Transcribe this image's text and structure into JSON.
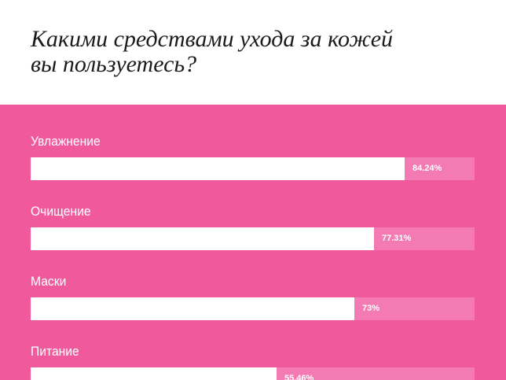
{
  "header": {
    "title": "Какими средствами ухода за кожей\nвы пользуетесь?"
  },
  "colors": {
    "panel": "#f05a9d",
    "track": "#f47ab3",
    "bar": "#ffffff"
  },
  "chart_data": {
    "type": "bar",
    "orientation": "horizontal",
    "title": "Какими средствами ухода за кожей вы пользуетесь?",
    "categories": [
      "Увлажнение",
      "Очищение",
      "Маски",
      "Питание"
    ],
    "values": [
      84.24,
      77.31,
      73,
      55.46
    ],
    "value_labels": [
      "84.24%",
      "77.31%",
      "73%",
      "55.46%"
    ],
    "xlim": [
      0,
      100
    ],
    "unit": "%",
    "grid": false,
    "legend": "none"
  }
}
